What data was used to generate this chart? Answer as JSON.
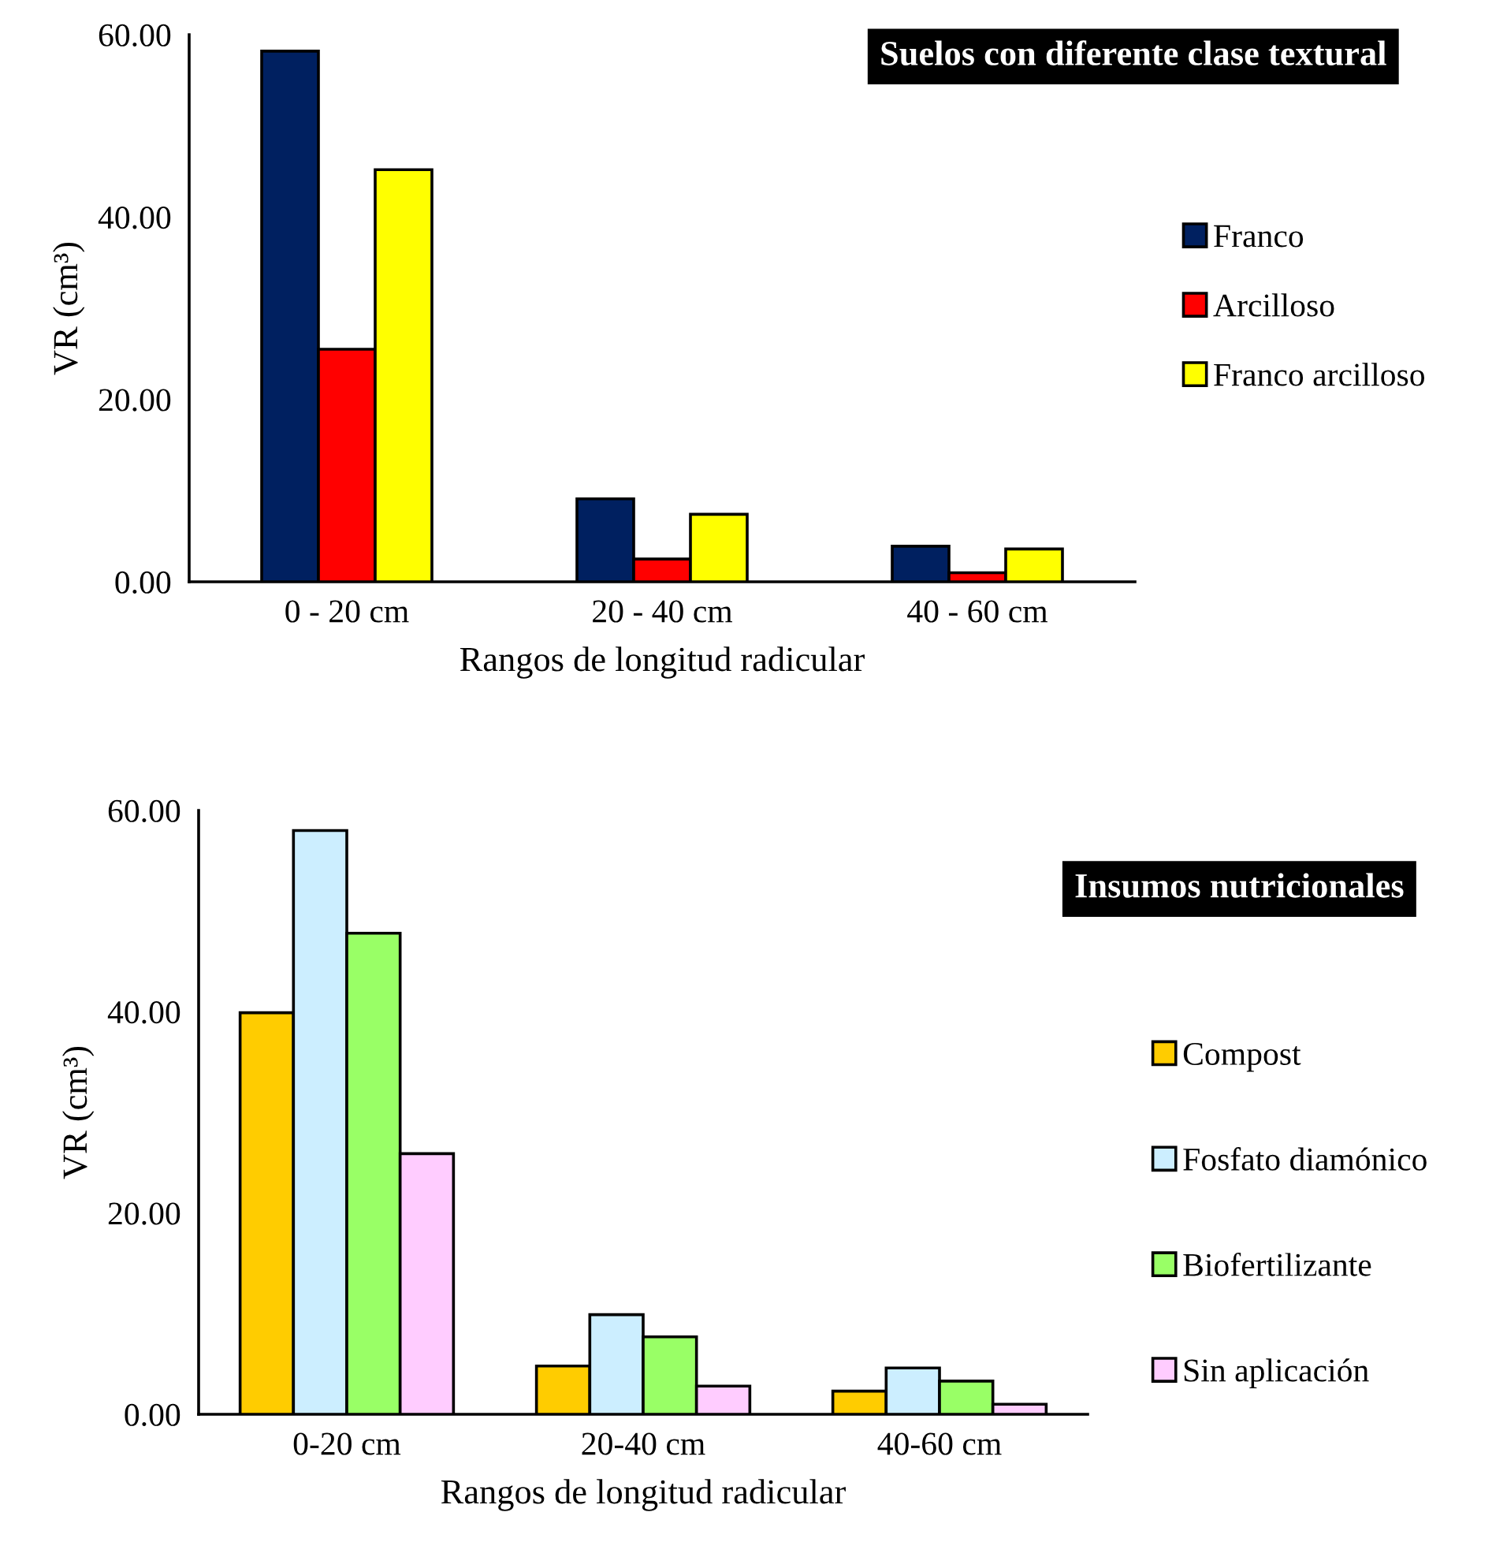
{
  "chart_data": [
    {
      "type": "bar",
      "title": "Suelos con diferente clase textural",
      "xlabel": "Rangos de longitud radicular",
      "ylabel": "VR (cm³)",
      "categories": [
        "0 - 20 cm",
        "20 - 40 cm",
        "40 - 60 cm"
      ],
      "series": [
        {
          "name": "Franco",
          "color": "#002060",
          "values": [
            58.2,
            9.1,
            3.9
          ]
        },
        {
          "name": "Arcilloso",
          "color": "#ff0000",
          "values": [
            25.5,
            2.5,
            1.0
          ]
        },
        {
          "name": "Franco arcilloso",
          "color": "#ffff00",
          "values": [
            45.2,
            7.4,
            3.6
          ]
        }
      ],
      "ylim": [
        0,
        60
      ],
      "yticks": [
        {
          "value": 0,
          "label": "0.00"
        },
        {
          "value": 20,
          "label": "20.00"
        },
        {
          "value": 40,
          "label": "40.00"
        },
        {
          "value": 60,
          "label": "60.00"
        }
      ],
      "grid": false,
      "legend": "right"
    },
    {
      "type": "bar",
      "title": "Insumos nutricionales",
      "xlabel": "Rangos de longitud radicular",
      "ylabel": "VR (cm³)",
      "categories": [
        "0-20 cm",
        "20-40 cm",
        "40-60 cm"
      ],
      "series": [
        {
          "name": "Compost",
          "color": "#ffcc00",
          "values": [
            39.9,
            4.8,
            2.3
          ]
        },
        {
          "name": "Fosfato diamónico",
          "color": "#cceeff",
          "values": [
            58.0,
            9.9,
            4.6
          ]
        },
        {
          "name": "Biofertilizante",
          "color": "#99ff66",
          "values": [
            47.8,
            7.7,
            3.3
          ]
        },
        {
          "name": "Sin aplicación",
          "color": "#ffccff",
          "values": [
            25.9,
            2.8,
            1.0
          ]
        }
      ],
      "ylim": [
        0,
        60
      ],
      "yticks": [
        {
          "value": 0,
          "label": "0.00"
        },
        {
          "value": 20,
          "label": "20.00"
        },
        {
          "value": 40,
          "label": "40.00"
        },
        {
          "value": 60,
          "label": "60.00"
        }
      ],
      "grid": false,
      "legend": "right"
    }
  ]
}
